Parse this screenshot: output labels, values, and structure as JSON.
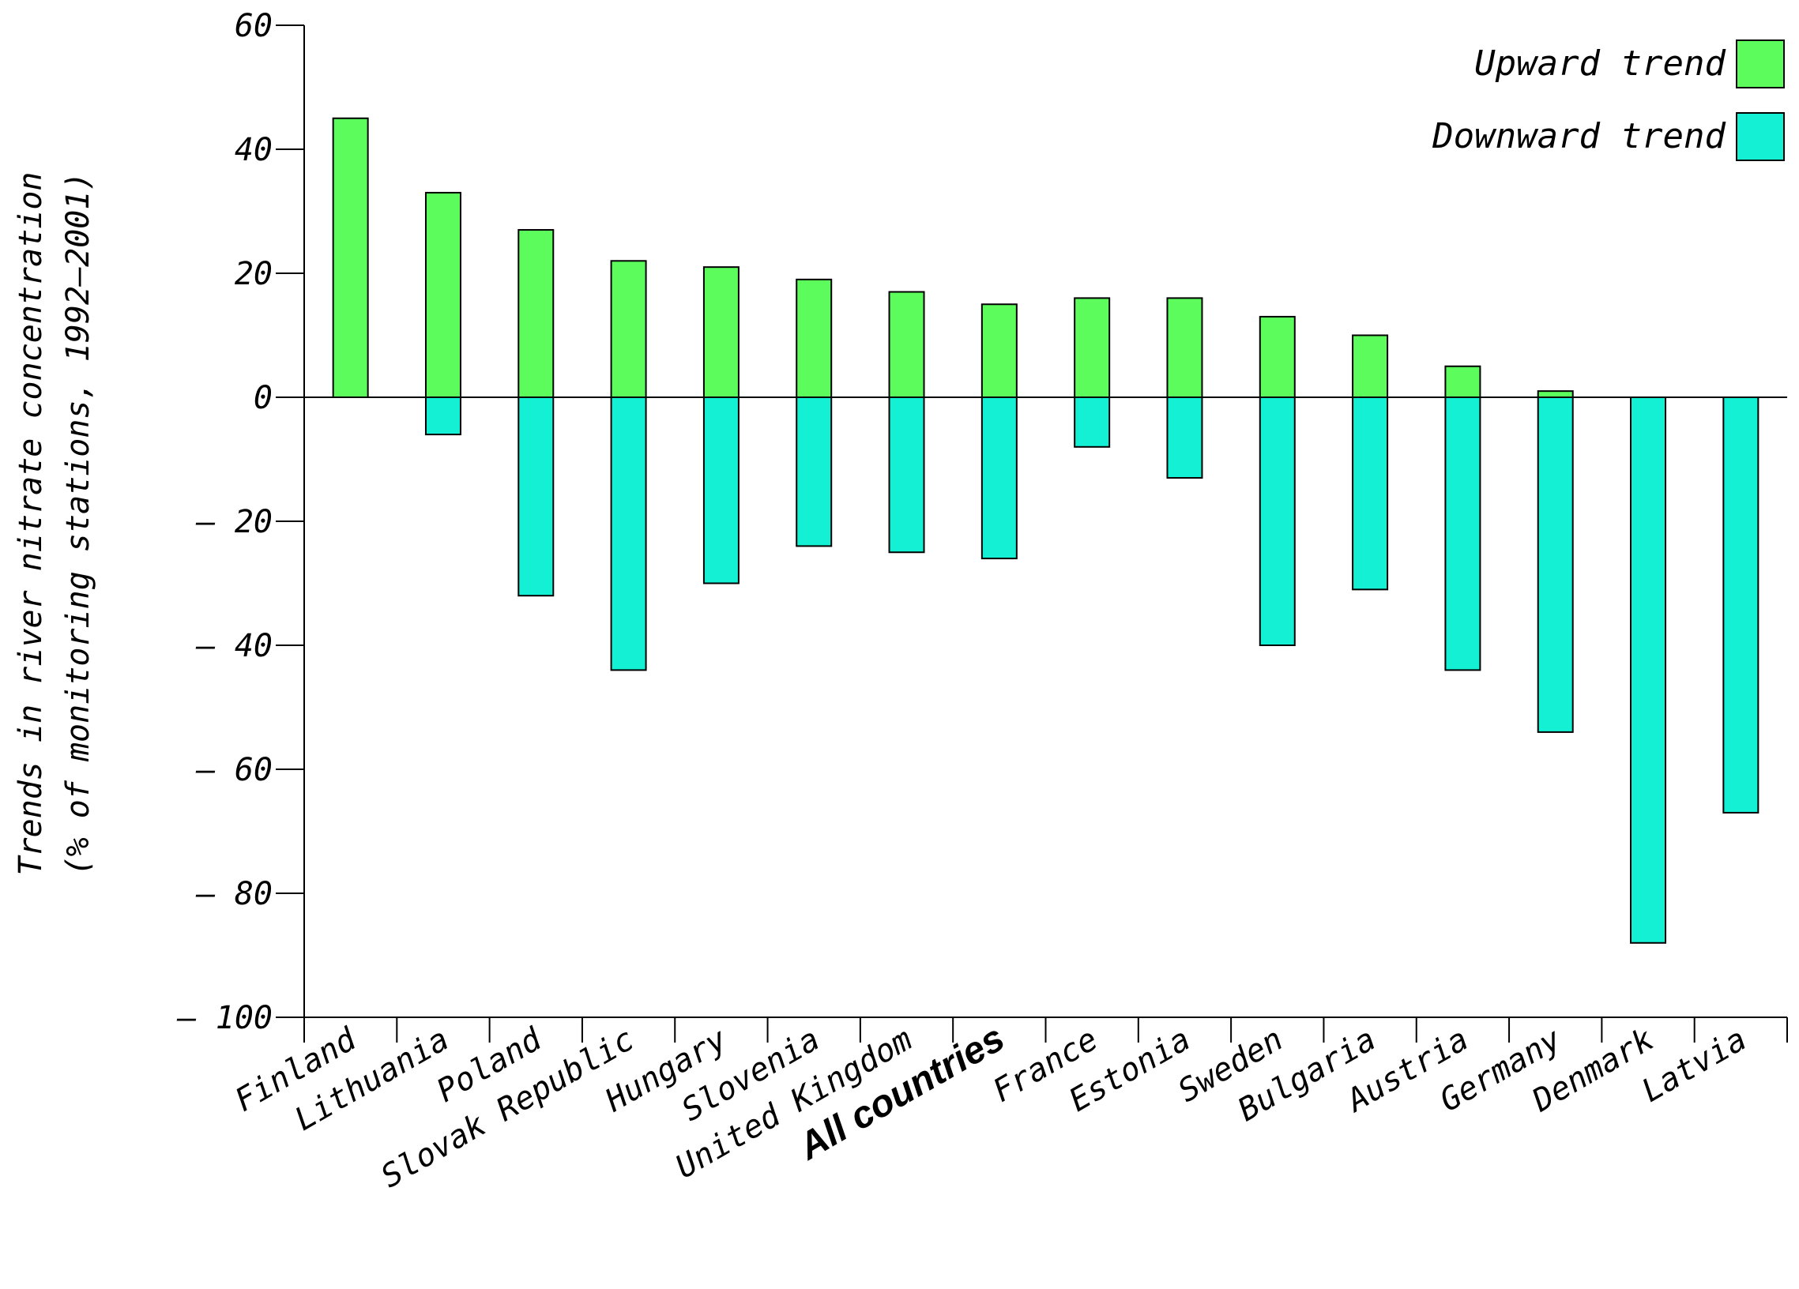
{
  "chart_data": {
    "type": "bar",
    "stacked": true,
    "ylabel": [
      "Trends in river nitrate concentration",
      "(% of monitoring stations, 1992–2001)"
    ],
    "ylim": [
      -100,
      60
    ],
    "yticks": [
      60,
      40,
      20,
      0,
      -20,
      -40,
      -60,
      -80,
      -100
    ],
    "ytick_labels": [
      "60",
      "40",
      "20",
      "0",
      "– 20",
      "– 40",
      "– 60",
      "– 80",
      "– 100"
    ],
    "categories": [
      "Finland",
      "Lithuania",
      "Poland",
      "Slovak Republic",
      "Hungary",
      "Slovenia",
      "United Kingdom",
      "All countries",
      "France",
      "Estonia",
      "Sweden",
      "Bulgaria",
      "Austria",
      "Germany",
      "Denmark",
      "Latvia"
    ],
    "series": [
      {
        "name": "Upward trend",
        "color": "#5cfc5c",
        "values": [
          45,
          33,
          27,
          22,
          21,
          19,
          17,
          15,
          16,
          16,
          13,
          10,
          5,
          1,
          0,
          0
        ]
      },
      {
        "name": "Downward trend",
        "color": "#14f0d4",
        "values": [
          0,
          -6,
          -32,
          -44,
          -30,
          -24,
          -25,
          -26,
          -8,
          -13,
          -40,
          -31,
          -44,
          -54,
          -88,
          -67
        ]
      }
    ],
    "legend_position": "top-right",
    "grid": false,
    "highlight_category": "All countries"
  }
}
